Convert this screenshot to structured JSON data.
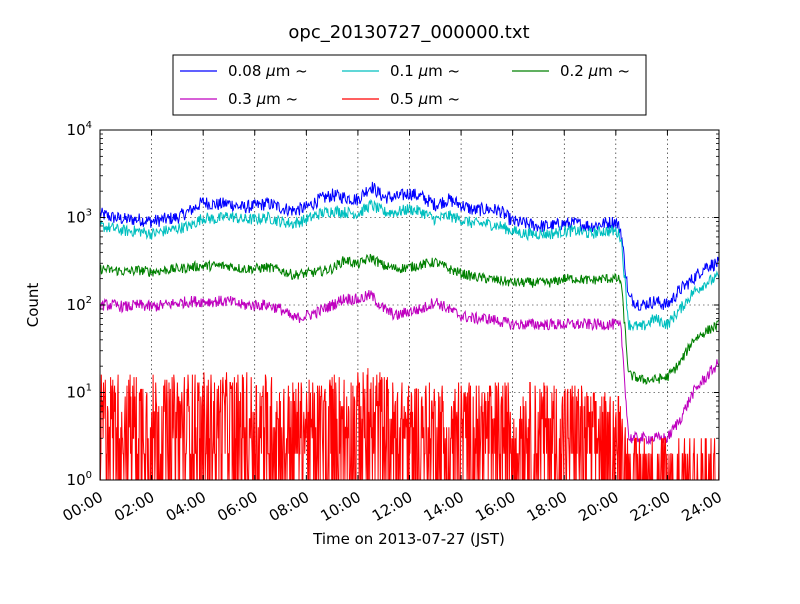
{
  "chart_data": {
    "type": "line",
    "title": "opc_20130727_000000.txt",
    "xlabel": "Time on 2013-07-27 (JST)",
    "ylabel": "Count",
    "xlim_hours": [
      0,
      24
    ],
    "yscale": "log",
    "ylim": [
      1,
      10000
    ],
    "grid": true,
    "legend_position": "top, outside plot",
    "x_ticks": [
      "00:00",
      "02:00",
      "04:00",
      "06:00",
      "08:00",
      "10:00",
      "12:00",
      "14:00",
      "16:00",
      "18:00",
      "20:00",
      "22:00",
      "24:00"
    ],
    "y_ticks": [
      {
        "base": "10",
        "exp": "0",
        "value": 1
      },
      {
        "base": "10",
        "exp": "1",
        "value": 10
      },
      {
        "base": "10",
        "exp": "2",
        "value": 100
      },
      {
        "base": "10",
        "exp": "3",
        "value": 1000
      },
      {
        "base": "10",
        "exp": "4",
        "value": 10000
      }
    ],
    "x_hours": [
      0,
      0.5,
      1,
      1.5,
      2,
      2.5,
      3,
      3.5,
      4,
      4.5,
      5,
      5.5,
      6,
      6.5,
      7,
      7.5,
      8,
      8.5,
      9,
      9.5,
      10,
      10.5,
      11,
      11.5,
      12,
      12.5,
      13,
      13.5,
      14,
      14.5,
      15,
      15.5,
      16,
      16.5,
      17,
      17.5,
      18,
      18.5,
      19,
      19.5,
      20,
      20.2,
      20.5,
      21,
      21.5,
      22,
      22.5,
      23,
      23.5,
      24
    ],
    "series": [
      {
        "name": "0.08",
        "color": "#0000ff",
        "noise": 0.08,
        "values": [
          1100,
          1000,
          950,
          950,
          900,
          950,
          1000,
          1200,
          1500,
          1400,
          1450,
          1300,
          1350,
          1450,
          1300,
          1200,
          1300,
          1600,
          1800,
          1700,
          1600,
          2300,
          1700,
          1700,
          1900,
          1700,
          1400,
          1600,
          1400,
          1200,
          1250,
          1200,
          900,
          850,
          800,
          800,
          850,
          850,
          800,
          850,
          900,
          700,
          120,
          100,
          110,
          100,
          150,
          200,
          280,
          300
        ]
      },
      {
        "name": "0.1",
        "color": "#00bfbf",
        "noise": 0.07,
        "values": [
          800,
          750,
          700,
          700,
          650,
          700,
          750,
          800,
          1000,
          950,
          1050,
          950,
          950,
          1000,
          900,
          850,
          950,
          1100,
          1200,
          1150,
          1100,
          1400,
          1150,
          1150,
          1250,
          1150,
          950,
          1050,
          950,
          850,
          850,
          800,
          700,
          650,
          650,
          650,
          700,
          700,
          650,
          700,
          700,
          600,
          60,
          55,
          70,
          60,
          90,
          140,
          180,
          210
        ]
      },
      {
        "name": "0.2",
        "color": "#008000",
        "noise": 0.06,
        "values": [
          260,
          250,
          240,
          250,
          240,
          250,
          260,
          270,
          280,
          280,
          280,
          260,
          260,
          270,
          250,
          220,
          230,
          240,
          260,
          330,
          290,
          350,
          280,
          260,
          270,
          290,
          310,
          260,
          230,
          210,
          200,
          190,
          180,
          180,
          180,
          180,
          200,
          200,
          190,
          200,
          200,
          190,
          16,
          14,
          14,
          15,
          22,
          40,
          50,
          60
        ]
      },
      {
        "name": "0.3",
        "color": "#bf00bf",
        "noise": 0.07,
        "values": [
          100,
          100,
          95,
          100,
          95,
          100,
          105,
          110,
          110,
          110,
          110,
          100,
          100,
          100,
          90,
          70,
          75,
          85,
          100,
          120,
          115,
          130,
          90,
          75,
          85,
          90,
          110,
          90,
          75,
          70,
          70,
          65,
          60,
          60,
          60,
          60,
          60,
          60,
          60,
          60,
          60,
          55,
          3,
          3,
          3,
          3,
          5,
          10,
          15,
          22
        ]
      },
      {
        "name": "0.5",
        "color": "#ff0000",
        "noise": 0.35,
        "values": [
          5,
          5,
          5,
          5,
          5,
          4,
          5,
          5,
          5,
          5,
          5,
          5,
          5,
          5,
          4,
          4,
          4,
          4,
          5,
          5,
          5,
          6,
          5,
          4,
          4,
          4,
          4,
          4,
          4,
          4,
          4,
          4,
          4,
          4,
          4,
          4,
          4,
          4,
          3,
          3,
          3,
          3,
          1,
          1,
          1,
          1,
          1,
          1,
          1,
          1
        ]
      }
    ],
    "legend_entries": [
      {
        "size": "0.08",
        "unit": "μm",
        "suffix": "~",
        "color": "#0000ff"
      },
      {
        "size": "0.1",
        "unit": "μm",
        "suffix": "~",
        "color": "#00bfbf"
      },
      {
        "size": "0.2",
        "unit": "μm",
        "suffix": "~",
        "color": "#008000"
      },
      {
        "size": "0.3",
        "unit": "μm",
        "suffix": "~",
        "color": "#bf00bf"
      },
      {
        "size": "0.5",
        "unit": "μm",
        "suffix": "~",
        "color": "#ff0000"
      }
    ]
  }
}
